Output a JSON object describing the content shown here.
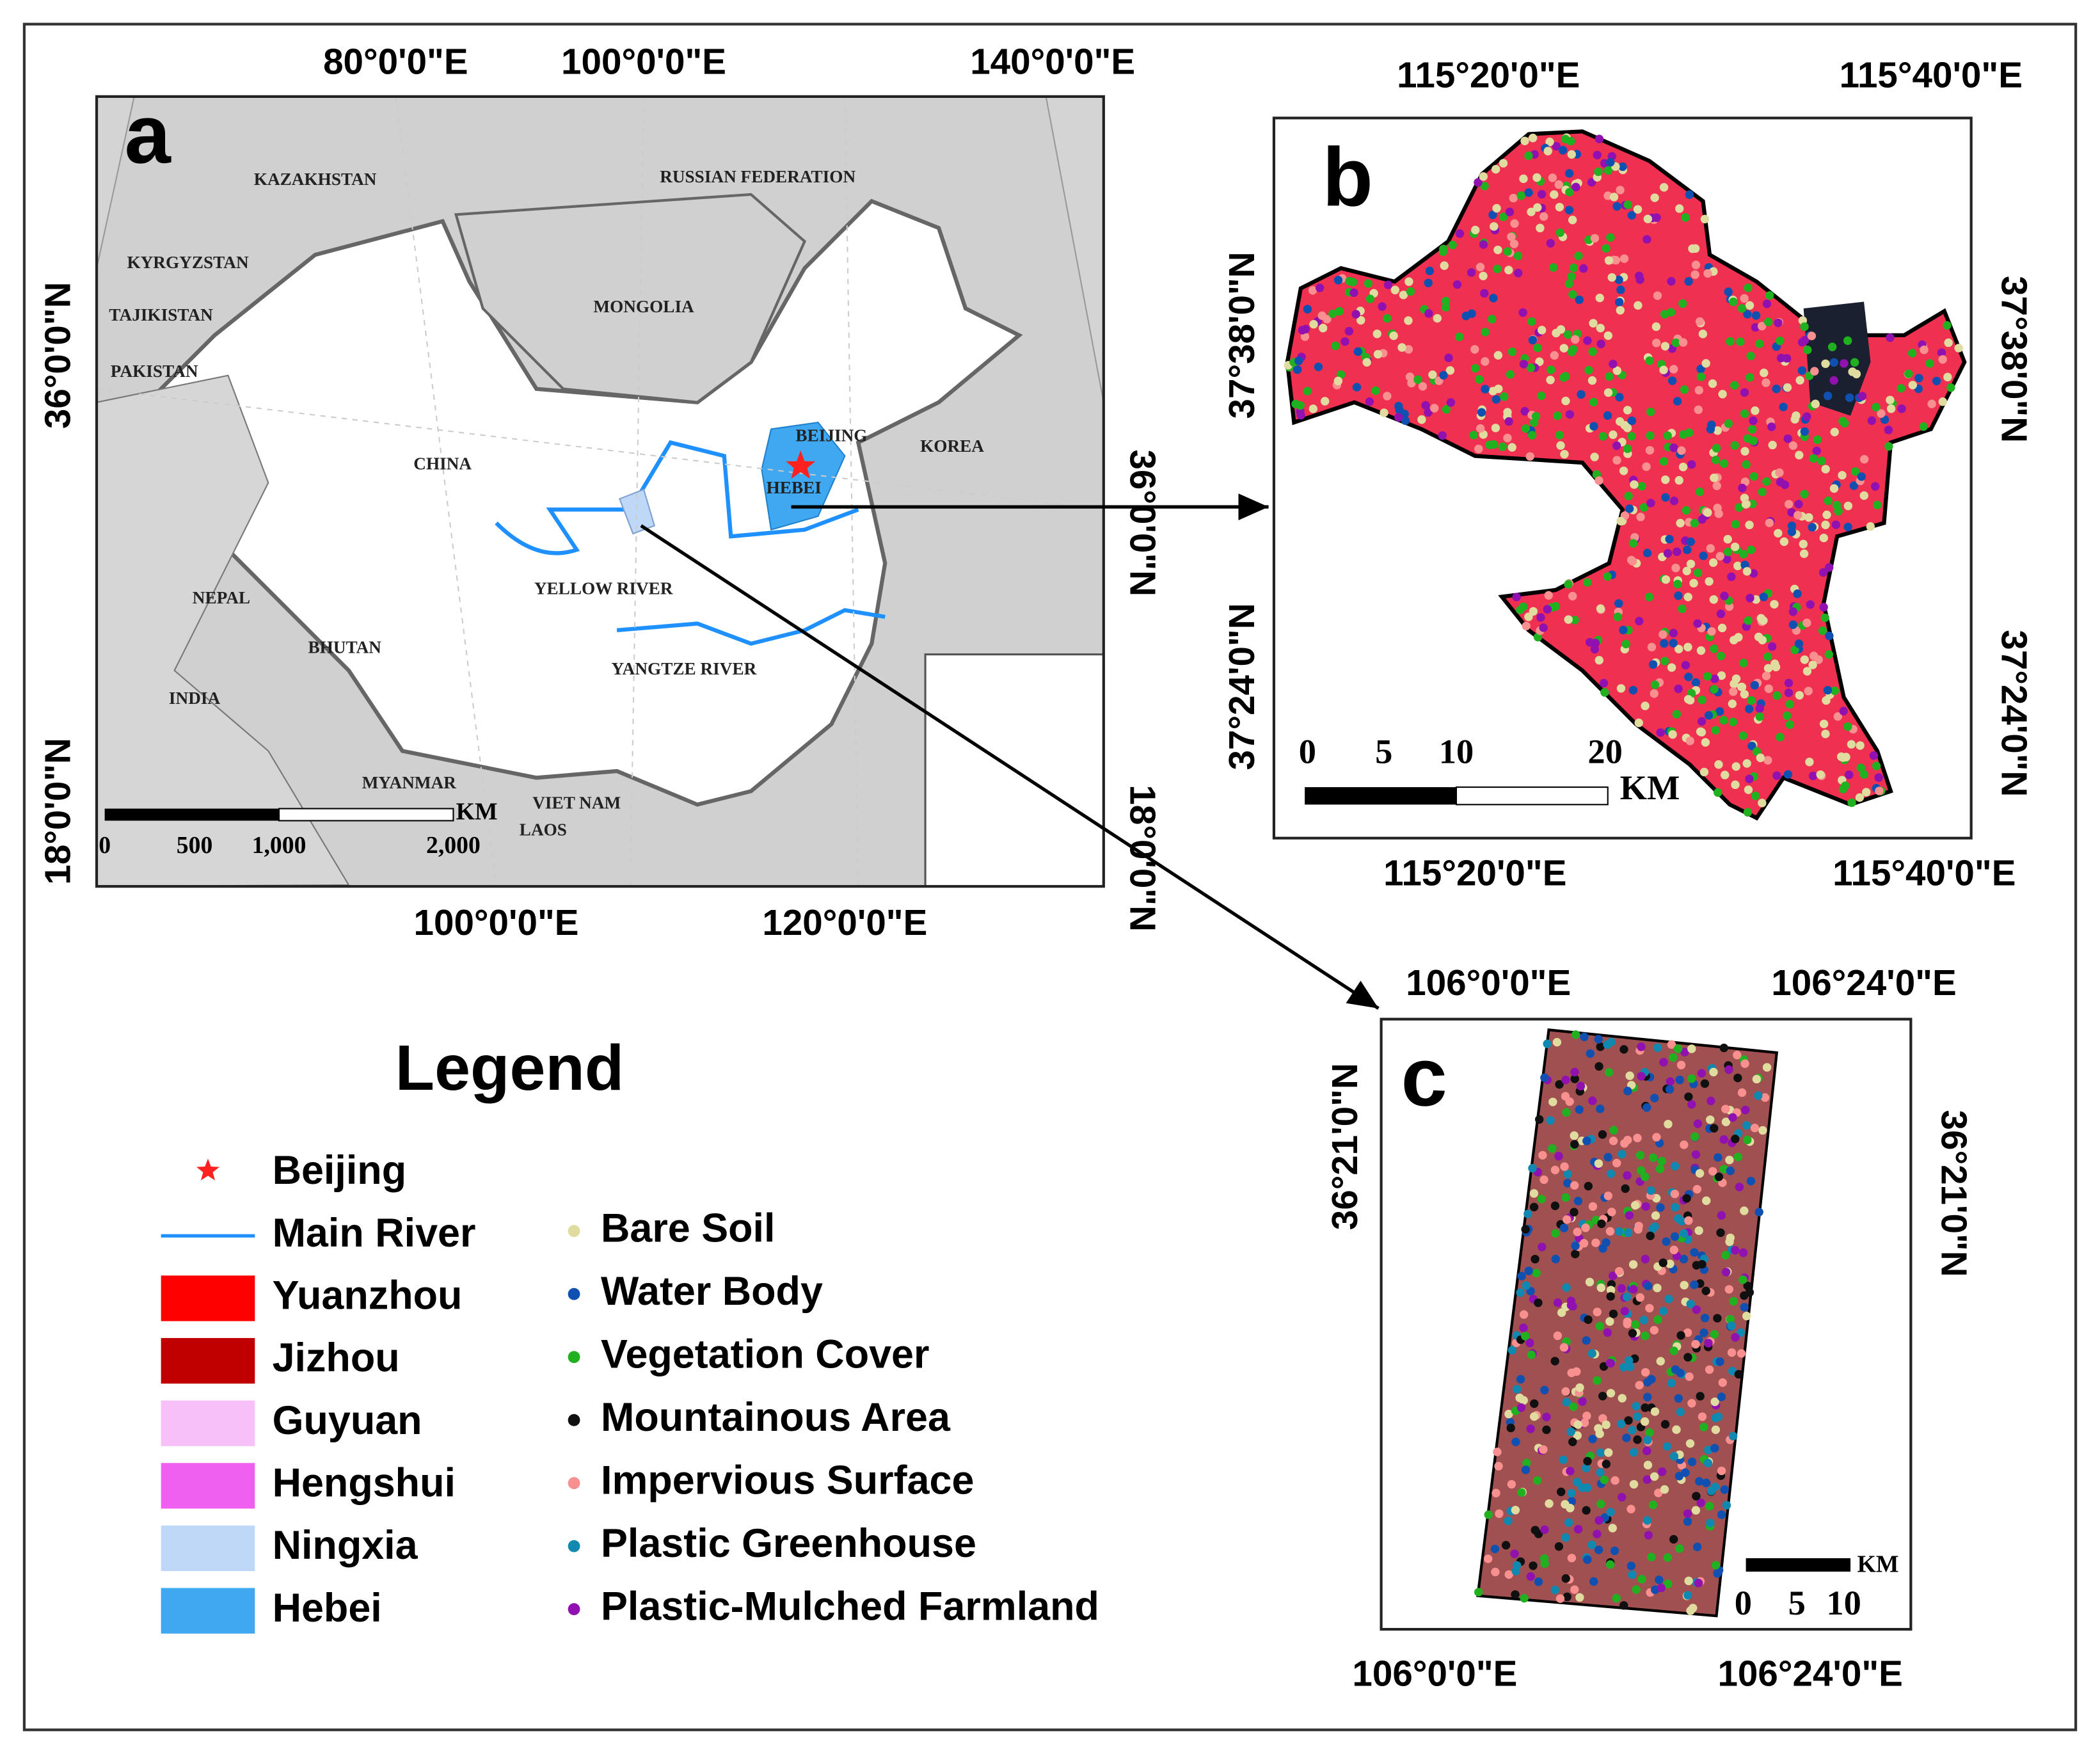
{
  "panel_a": {
    "label": "a",
    "top_labels": [
      "80°0'0\"E",
      "100°0'0\"E",
      "140°0'0\"E"
    ],
    "bottom_labels": [
      "100°0'0\"E",
      "120°0'0\"E"
    ],
    "left_labels": [
      "36°0'0\"N",
      "18°0'0\"N"
    ],
    "right_labels": [
      "36°0'0\"N",
      "18°0'0\"N"
    ],
    "places": [
      "KAZAKHSTAN",
      "RUSSIAN FEDERATION",
      "KYRGYZSTAN",
      "TAJIKISTAN",
      "PAKISTAN",
      "MONGOLIA",
      "CHINA",
      "BEIJING",
      "HEBEI",
      "KOREA",
      "YELLOW RIVER",
      "NEPAL",
      "BHUTAN",
      "YANGTZE RIVER",
      "INDIA",
      "MYANMAR",
      "VIET NAM",
      "LAOS"
    ],
    "scale_bar": {
      "unit": "KM",
      "ticks": [
        "0",
        "500",
        "1,000",
        "2,000"
      ]
    }
  },
  "panel_b": {
    "label": "b",
    "top_labels": [
      "115°20'0\"E",
      "115°40'0\"E"
    ],
    "bottom_labels": [
      "115°20'0\"E",
      "115°40'0\"E"
    ],
    "left_labels": [
      "37°38'0\"N",
      "37°24'0\"N"
    ],
    "right_labels": [
      "37°38'0\"N",
      "37°24'0\"N"
    ],
    "scale_bar": {
      "unit": "KM",
      "ticks": [
        "0",
        "5",
        "10",
        "20"
      ]
    }
  },
  "panel_c": {
    "label": "c",
    "top_labels": [
      "106°0'0\"E",
      "106°24'0\"E"
    ],
    "bottom_labels": [
      "106°0'0\"E",
      "106°24'0\"E"
    ],
    "left_labels": [
      "36°21'0\"N"
    ],
    "right_labels": [
      "36°21'0\"N"
    ],
    "scale_bar": {
      "unit": "KM",
      "ticks": [
        "0",
        "5",
        "10"
      ]
    }
  },
  "legend": {
    "title": "Legend",
    "items": [
      {
        "label": "Beijing",
        "symbol": "star",
        "color": "#ff2020"
      },
      {
        "label": "Main River",
        "symbol": "line",
        "color": "#1e90ff"
      },
      {
        "label": "Yuanzhou",
        "symbol": "rect",
        "color": "#ff0000"
      },
      {
        "label": "Jizhou",
        "symbol": "rect",
        "color": "#c00000"
      },
      {
        "label": "Guyuan",
        "symbol": "rect",
        "color": "#f8c0f8"
      },
      {
        "label": "Hengshui",
        "symbol": "rect",
        "color": "#f060f0"
      },
      {
        "label": "Ningxia",
        "symbol": "rect",
        "color": "#c0d8f8"
      },
      {
        "label": "Hebei",
        "symbol": "rect",
        "color": "#40a8f0"
      },
      {
        "label": "Bare Soil",
        "symbol": "dot",
        "color": "#e0dca0"
      },
      {
        "label": "Water Body",
        "symbol": "dot",
        "color": "#1050b0"
      },
      {
        "label": "Vegetation Cover",
        "symbol": "dot",
        "color": "#20b020"
      },
      {
        "label": "Mountainous Area",
        "symbol": "dot",
        "color": "#101010"
      },
      {
        "label": "Impervious Surface",
        "symbol": "dot",
        "color": "#f89090"
      },
      {
        "label": "Plastic Greenhouse",
        "symbol": "dot",
        "color": "#1088b0"
      },
      {
        "label": "Plastic-Mulched Farmland",
        "symbol": "dot",
        "color": "#9010b0"
      }
    ]
  }
}
